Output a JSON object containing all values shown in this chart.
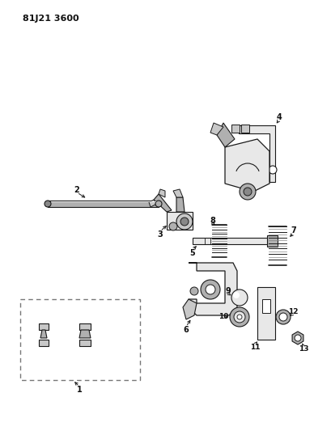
{
  "title": "81J21 3600",
  "bg_color": "#ffffff",
  "line_color": "#1a1a1a",
  "label_color": "#111111",
  "fig_width": 3.88,
  "fig_height": 5.33,
  "dpi": 100,
  "part_gray": "#c8c8c8",
  "part_dark": "#888888",
  "part_light": "#e8e8e8",
  "part_mid": "#b0b0b0"
}
